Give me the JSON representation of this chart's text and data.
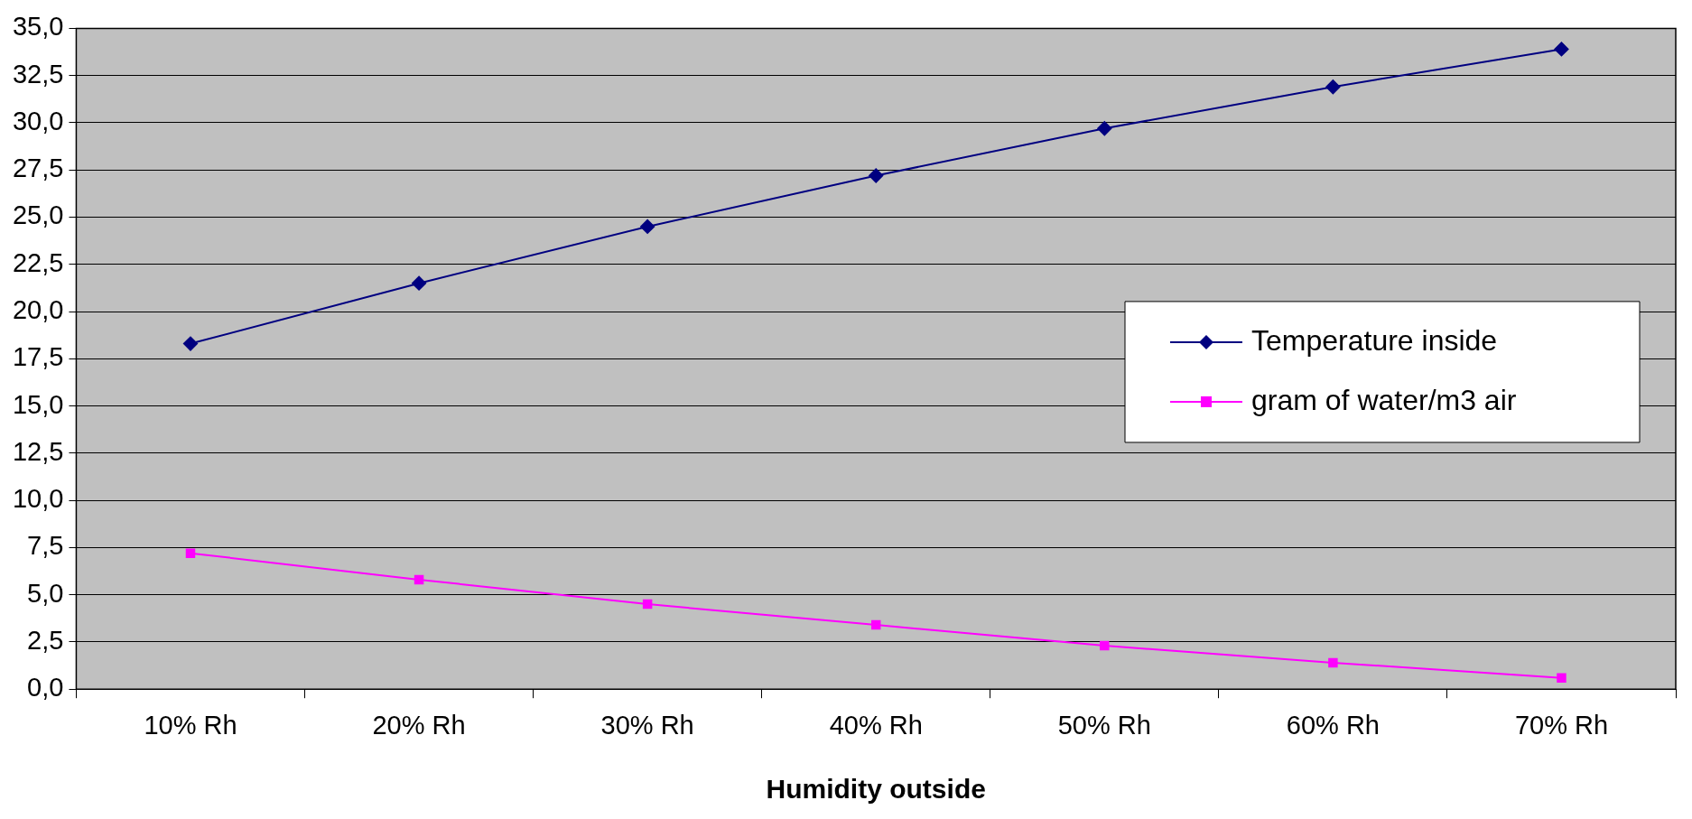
{
  "chart_data": {
    "type": "line",
    "xlabel": "Humidity outside",
    "categories": [
      "10% Rh",
      "20% Rh",
      "30% Rh",
      "40% Rh",
      "50% Rh",
      "60% Rh",
      "70% Rh"
    ],
    "series": [
      {
        "name": "Temperature inside",
        "color": "#000080",
        "marker": "diamond",
        "values": [
          18.3,
          21.5,
          24.5,
          27.2,
          29.7,
          31.9,
          33.9
        ]
      },
      {
        "name": "gram of water/m3 air",
        "color": "#ff00ff",
        "marker": "square",
        "values": [
          7.2,
          5.8,
          4.5,
          3.4,
          2.3,
          1.4,
          0.6
        ]
      }
    ],
    "ylim": [
      0,
      35
    ],
    "yticks": [
      {
        "value": 0,
        "label": "0,0"
      },
      {
        "value": 2.5,
        "label": "2,5"
      },
      {
        "value": 5,
        "label": "5,0"
      },
      {
        "value": 7.5,
        "label": "7,5"
      },
      {
        "value": 10,
        "label": "10,0"
      },
      {
        "value": 12.5,
        "label": "12,5"
      },
      {
        "value": 15,
        "label": "15,0"
      },
      {
        "value": 17.5,
        "label": "17,5"
      },
      {
        "value": 20,
        "label": "20,0"
      },
      {
        "value": 22.5,
        "label": "22,5"
      },
      {
        "value": 25,
        "label": "25,0"
      },
      {
        "value": 27.5,
        "label": "27,5"
      },
      {
        "value": 30,
        "label": "30,0"
      },
      {
        "value": 32.5,
        "label": "32,5"
      },
      {
        "value": 35,
        "label": "35,0"
      }
    ],
    "grid": "y",
    "legend": "right"
  }
}
